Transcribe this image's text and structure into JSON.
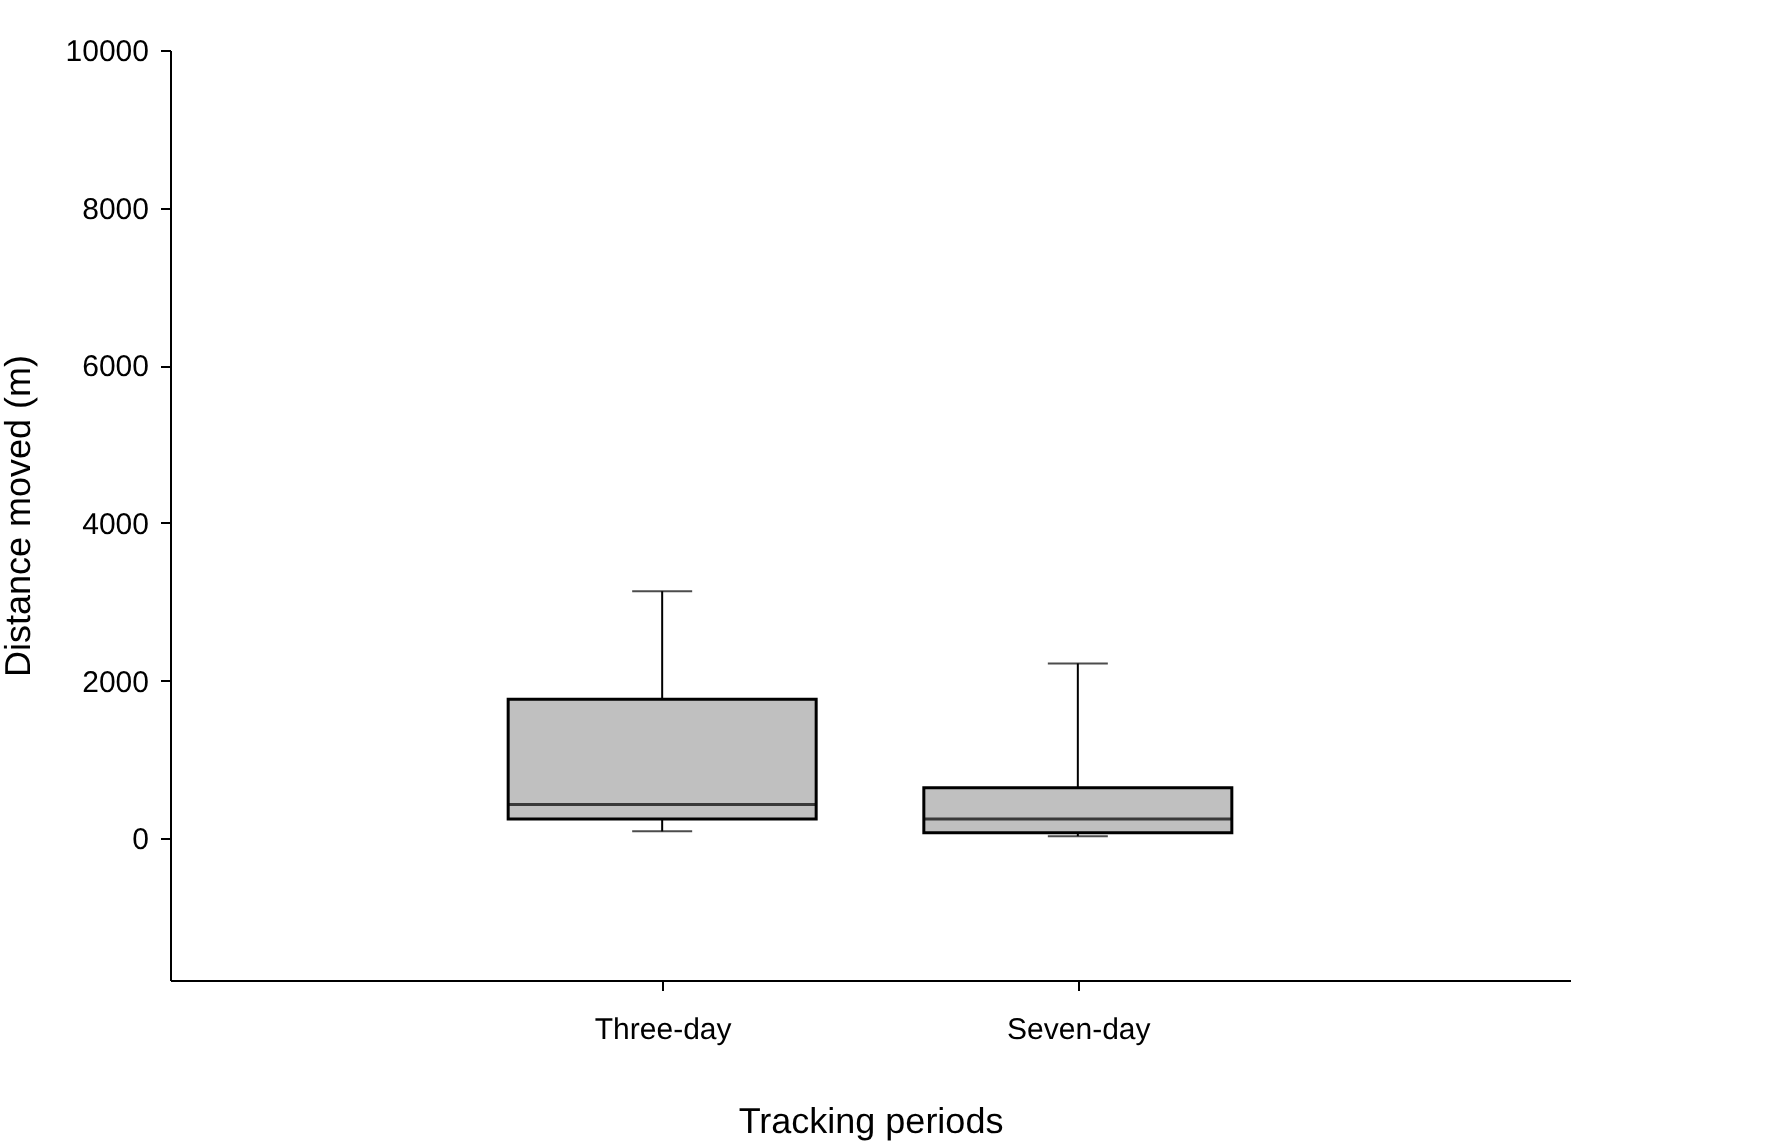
{
  "chart_data": {
    "type": "box",
    "xlabel": "Tracking periods",
    "ylabel": "Distance moved (m)",
    "categories": [
      "Three-day",
      "Seven-day"
    ],
    "color": "#c0c0c0",
    "boxes": [
      {
        "low": 86,
        "q1": 244,
        "median": 428,
        "q3": 1763,
        "high": 3133
      },
      {
        "low": 25,
        "q1": 68,
        "median": 244,
        "q3": 640,
        "high": 2217
      }
    ],
    "ylim": [
      -1800,
      10000
    ],
    "yticks": [
      0,
      2000,
      4000,
      6000,
      8000,
      10000
    ],
    "grid": false
  }
}
